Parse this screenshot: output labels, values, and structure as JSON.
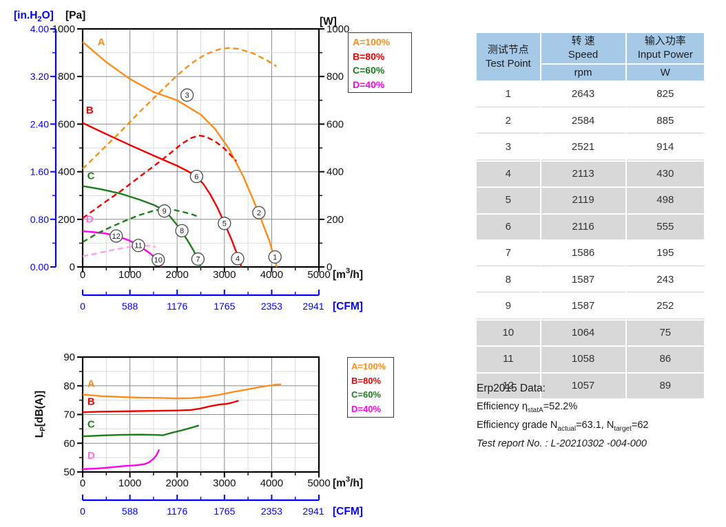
{
  "colors": {
    "blue_axis": "#0000FF",
    "grid_minor": "#D9D9D9",
    "grid_major": "#8A8A8A",
    "frame": "#000000",
    "table_header_bg": "#A6C9E7",
    "table_gray_row": "#D8D8D8"
  },
  "axes_labels": {
    "pa": "[Pa]",
    "w": "[W]",
    "inh2o_pre": "[in.H",
    "inh2o_sub": "2",
    "inh2o_post": "O]",
    "m3h_pre": "[m",
    "m3h_sup": "3",
    "m3h_post": "/h]",
    "cfm": "[CFM]",
    "lp_pre": "L",
    "lp_sub": "P",
    "lp_post": "[dB(A)]"
  },
  "table": {
    "header": {
      "col1_zh": "测试节点",
      "col1_en": "Test Point",
      "col2_zh": "转 速",
      "col2_en": "Speed",
      "col2_unit": "rpm",
      "col3_zh": "输入功率",
      "col3_en": "Input Power",
      "col3_unit": "W"
    },
    "rows": [
      [
        "1",
        "2643",
        "825"
      ],
      [
        "2",
        "2584",
        "885"
      ],
      [
        "3",
        "2521",
        "914"
      ],
      [
        "4",
        "2113",
        "430"
      ],
      [
        "5",
        "2119",
        "498"
      ],
      [
        "6",
        "2116",
        "555"
      ],
      [
        "7",
        "1586",
        "195"
      ],
      [
        "8",
        "1587",
        "243"
      ],
      [
        "9",
        "1587",
        "252"
      ],
      [
        "10",
        "1064",
        "75"
      ],
      [
        "11",
        "1058",
        "86"
      ],
      [
        "12",
        "1057",
        "89"
      ]
    ],
    "gray_row_indexes": [
      3,
      4,
      5,
      9,
      10,
      11
    ]
  },
  "erp": {
    "title": "Erp2015  Data:",
    "eff_pre": "Efficiency η",
    "eff_sub": "statA",
    "eff_post": "=52.2%",
    "grade_pre": "Efficiency grade N",
    "grade_sub1": "actual",
    "grade_mid": "=63.1, N",
    "grade_sub2": "target",
    "grade_post": "=62",
    "report": "Test report No. : L-20210302 -004-000"
  },
  "chart_data": [
    {
      "id": "fan-performance",
      "type": "line",
      "x": {
        "label": "[m³/h]",
        "min": 0,
        "max": 5000,
        "major": 1000,
        "minor": 500
      },
      "y": {
        "label": "[Pa]",
        "min": 0,
        "max": 1000,
        "major": 200,
        "minor": 100
      },
      "y2": {
        "label": "[W]",
        "min": 0,
        "max": 1000,
        "major": 200,
        "minor": 100
      },
      "aux_y": {
        "label": "[in.H₂O]",
        "ticks": [
          "4.00",
          "3.20",
          "2.40",
          "1.60",
          "0.80",
          "0.00"
        ]
      },
      "aux_x": {
        "label": "[CFM]",
        "ticks": [
          "0",
          "588",
          "1176",
          "1765",
          "2353",
          "2941"
        ]
      },
      "legend": [
        {
          "label": "A=100%",
          "color": "#FF8C1A"
        },
        {
          "label": "B=80%",
          "color": "#F20000"
        },
        {
          "label": "C=60%",
          "color": "#1B7E1B"
        },
        {
          "label": "D=40%",
          "color": "#FF00F0"
        }
      ],
      "series": [
        {
          "name": "A-pressure",
          "color": "#FF8C1A",
          "dash": false,
          "label": {
            "text": "A",
            "x": 395,
            "y": 930
          },
          "points": [
            [
              0,
              945
            ],
            [
              500,
              860
            ],
            [
              1000,
              790
            ],
            [
              1500,
              735
            ],
            [
              2000,
              700
            ],
            [
              2500,
              640
            ],
            [
              2800,
              580
            ],
            [
              3100,
              495
            ],
            [
              3400,
              380
            ],
            [
              3700,
              240
            ],
            [
              3950,
              110
            ],
            [
              4110,
              0
            ]
          ]
        },
        {
          "name": "B-pressure",
          "color": "#F20000",
          "dash": false,
          "label": {
            "text": "B",
            "x": 150,
            "y": 645
          },
          "points": [
            [
              0,
              605
            ],
            [
              500,
              558
            ],
            [
              1000,
              512
            ],
            [
              1500,
              468
            ],
            [
              2000,
              425
            ],
            [
              2200,
              405
            ],
            [
              2400,
              382
            ],
            [
              2550,
              350
            ],
            [
              2700,
              305
            ],
            [
              2850,
              250
            ],
            [
              3000,
              185
            ],
            [
              3150,
              115
            ],
            [
              3300,
              38
            ],
            [
              3360,
              0
            ]
          ]
        },
        {
          "name": "C-pressure",
          "color": "#1B7E1B",
          "dash": false,
          "label": {
            "text": "C",
            "x": 175,
            "y": 368
          },
          "points": [
            [
              0,
              340
            ],
            [
              400,
              326
            ],
            [
              800,
              308
            ],
            [
              1200,
              283
            ],
            [
              1500,
              261
            ],
            [
              1750,
              236
            ],
            [
              1900,
              200
            ],
            [
              2050,
              163
            ],
            [
              2200,
              118
            ],
            [
              2350,
              68
            ],
            [
              2500,
              0
            ]
          ]
        },
        {
          "name": "D-pressure",
          "color": "#FF00F0",
          "dash": false,
          "label_color": "#FF70E8",
          "label": {
            "text": "D",
            "x": 150,
            "y": 186
          },
          "points": [
            [
              0,
              150
            ],
            [
              250,
              146
            ],
            [
              500,
              140
            ],
            [
              750,
              128
            ],
            [
              1000,
              110
            ],
            [
              1200,
              88
            ],
            [
              1400,
              61
            ],
            [
              1550,
              37
            ],
            [
              1675,
              0
            ]
          ]
        },
        {
          "name": "A-power",
          "color": "#FF8C1A",
          "dash": true,
          "points": [
            [
              0,
              412
            ],
            [
              400,
              490
            ],
            [
              800,
              568
            ],
            [
              1200,
              650
            ],
            [
              1600,
              728
            ],
            [
              2000,
              805
            ],
            [
              2300,
              855
            ],
            [
              2600,
              893
            ],
            [
              2900,
              915
            ],
            [
              3100,
              920
            ],
            [
              3300,
              916
            ],
            [
              3600,
              898
            ],
            [
              3900,
              868
            ],
            [
              4100,
              843
            ]
          ]
        },
        {
          "name": "B-power",
          "color": "#F20000",
          "dash": true,
          "points": [
            [
              0,
              205
            ],
            [
              400,
              262
            ],
            [
              800,
              318
            ],
            [
              1200,
              378
            ],
            [
              1600,
              438
            ],
            [
              1900,
              485
            ],
            [
              2100,
              518
            ],
            [
              2300,
              542
            ],
            [
              2450,
              552
            ],
            [
              2600,
              548
            ],
            [
              2800,
              528
            ],
            [
              3000,
              497
            ],
            [
              3250,
              445
            ]
          ]
        },
        {
          "name": "C-power",
          "color": "#1B7E1B",
          "dash": true,
          "points": [
            [
              0,
              104
            ],
            [
              300,
              140
            ],
            [
              600,
              168
            ],
            [
              900,
              194
            ],
            [
              1200,
              218
            ],
            [
              1500,
              236
            ],
            [
              1700,
              243
            ],
            [
              1900,
              241
            ],
            [
              2100,
              232
            ],
            [
              2300,
              222
            ],
            [
              2450,
              211
            ]
          ]
        },
        {
          "name": "D-power",
          "color": "#FFA0EE",
          "dash": true,
          "points": [
            [
              0,
              45
            ],
            [
              300,
              57
            ],
            [
              600,
              70
            ],
            [
              900,
              81
            ],
            [
              1100,
              87
            ],
            [
              1300,
              90
            ],
            [
              1450,
              88
            ],
            [
              1550,
              84
            ]
          ]
        }
      ],
      "test_points": [
        {
          "n": "1",
          "x": 4070,
          "y": 42
        },
        {
          "n": "2",
          "x": 3730,
          "y": 228
        },
        {
          "n": "3",
          "x": 2210,
          "y": 722
        },
        {
          "n": "4",
          "x": 3280,
          "y": 35
        },
        {
          "n": "5",
          "x": 3000,
          "y": 183
        },
        {
          "n": "6",
          "x": 2410,
          "y": 380
        },
        {
          "n": "7",
          "x": 2440,
          "y": 33
        },
        {
          "n": "8",
          "x": 2100,
          "y": 152
        },
        {
          "n": "9",
          "x": 1730,
          "y": 235
        },
        {
          "n": "10",
          "x": 1600,
          "y": 30
        },
        {
          "n": "11",
          "x": 1180,
          "y": 90
        },
        {
          "n": "12",
          "x": 710,
          "y": 130
        }
      ]
    },
    {
      "id": "noise",
      "type": "line",
      "x": {
        "label": "[m³/h]",
        "min": 0,
        "max": 5000,
        "major": 1000,
        "minor": 500
      },
      "y": {
        "label": "Lp[dB(A)]",
        "min": 50,
        "max": 90,
        "major": 10,
        "minor": 5
      },
      "aux_x": {
        "label": "[CFM]",
        "ticks": [
          "0",
          "588",
          "1176",
          "1765",
          "2353",
          "2941"
        ]
      },
      "legend": [
        {
          "label": "A=100%",
          "color": "#FF8C1A"
        },
        {
          "label": "B=80%",
          "color": "#F20000"
        },
        {
          "label": "C=60%",
          "color": "#1B7E1B"
        },
        {
          "label": "D=40%",
          "color": "#FF00F0"
        }
      ],
      "series": [
        {
          "name": "A-noise",
          "color": "#FF8C1A",
          "dash": false,
          "label": {
            "text": "A",
            "x": 180,
            "y": 79.6
          },
          "points": [
            [
              0,
              77
            ],
            [
              400,
              76.4
            ],
            [
              800,
              76.1
            ],
            [
              1200,
              75.9
            ],
            [
              1600,
              75.8
            ],
            [
              2000,
              75.6
            ],
            [
              2300,
              75.7
            ],
            [
              2600,
              76.1
            ],
            [
              2900,
              76.9
            ],
            [
              3200,
              77.9
            ],
            [
              3500,
              78.8
            ],
            [
              3800,
              79.7
            ],
            [
              4050,
              80.3
            ],
            [
              4200,
              80.5
            ]
          ]
        },
        {
          "name": "B-noise",
          "color": "#F20000",
          "dash": false,
          "label": {
            "text": "B",
            "x": 180,
            "y": 73.4
          },
          "points": [
            [
              0,
              70.8
            ],
            [
              400,
              71
            ],
            [
              800,
              71.1
            ],
            [
              1200,
              71.2
            ],
            [
              1600,
              71.3
            ],
            [
              2000,
              71.4
            ],
            [
              2300,
              71.6
            ],
            [
              2500,
              72.1
            ],
            [
              2700,
              72.9
            ],
            [
              2900,
              73.5
            ],
            [
              3050,
              73.7
            ],
            [
              3200,
              74.3
            ],
            [
              3300,
              74.8
            ]
          ]
        },
        {
          "name": "C-noise",
          "color": "#1B7E1B",
          "dash": false,
          "label": {
            "text": "C",
            "x": 180,
            "y": 65.4
          },
          "points": [
            [
              0,
              62.4
            ],
            [
              400,
              62.7
            ],
            [
              800,
              62.9
            ],
            [
              1200,
              63
            ],
            [
              1500,
              62.9
            ],
            [
              1700,
              62.8
            ],
            [
              1900,
              63.7
            ],
            [
              2100,
              64.5
            ],
            [
              2300,
              65.4
            ],
            [
              2460,
              66.2
            ]
          ]
        },
        {
          "name": "D-noise",
          "color": "#FF00F0",
          "dash": false,
          "label_color": "#FF70E8",
          "label": {
            "text": "D",
            "x": 180,
            "y": 54.6
          },
          "points": [
            [
              0,
              51
            ],
            [
              300,
              51.2
            ],
            [
              600,
              51.6
            ],
            [
              900,
              52.1
            ],
            [
              1100,
              52.3
            ],
            [
              1300,
              52.7
            ],
            [
              1400,
              53.3
            ],
            [
              1500,
              54.6
            ],
            [
              1560,
              55.8
            ],
            [
              1620,
              57.8
            ]
          ]
        }
      ]
    }
  ]
}
